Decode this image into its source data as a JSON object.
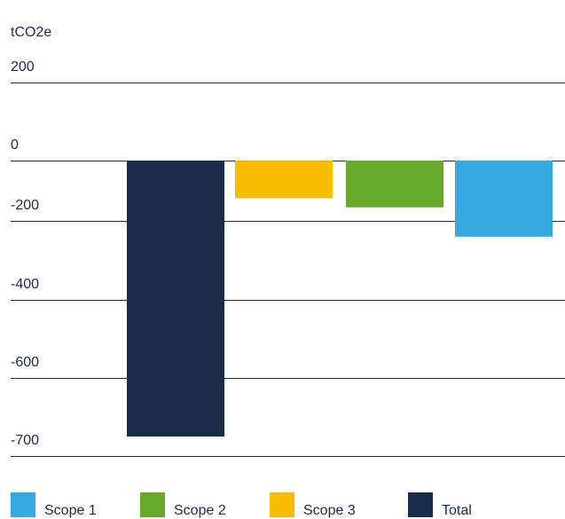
{
  "chart_data": {
    "type": "bar",
    "unit_label": "tCO2e",
    "y_ticks": [
      200,
      0,
      -200,
      -400,
      -600,
      -700
    ],
    "ylim": [
      -700,
      200
    ],
    "categories": [
      "Total",
      "Scope 3",
      "Scope 2",
      "Scope 1"
    ],
    "values": [
      -675,
      -125,
      -155,
      -240
    ],
    "colors": [
      "#1b2c4b",
      "#f9bd00",
      "#67a92b",
      "#35a9e0"
    ],
    "grid": true,
    "legend_position": "bottom",
    "legend": [
      {
        "label": "Scope 1",
        "color": "#35a9e0"
      },
      {
        "label": "Scope 2",
        "color": "#67a92b"
      },
      {
        "label": "Scope 3",
        "color": "#f9bd00"
      },
      {
        "label": "Total",
        "color": "#1b2c4b"
      }
    ]
  }
}
